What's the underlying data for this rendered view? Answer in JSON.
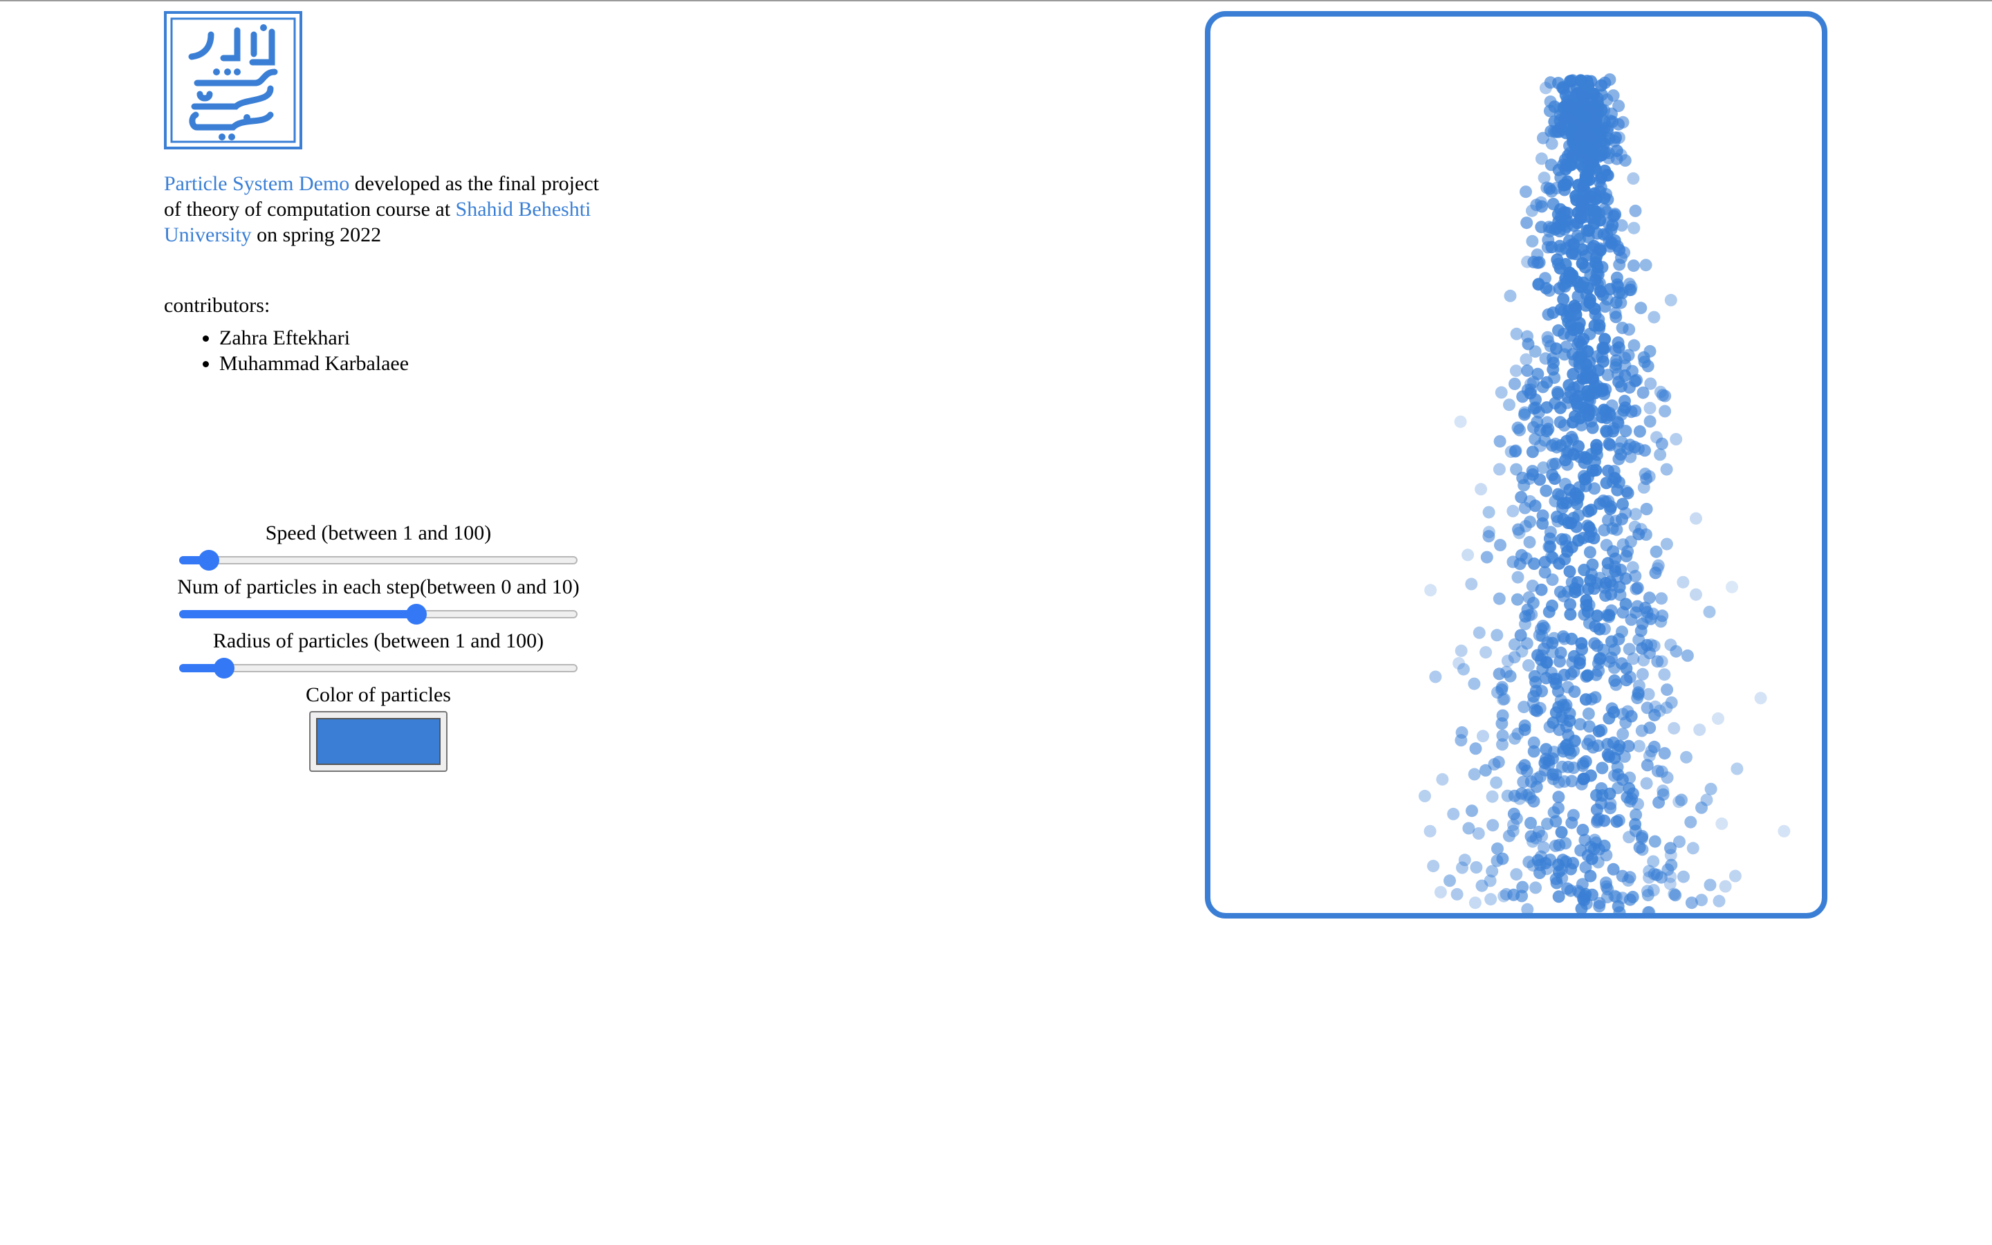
{
  "logo": {
    "icon": "shahid-beheshti-university-logo",
    "text": "دانشگاه شهید بهشتی"
  },
  "intro": {
    "project_link": "Particle System Demo",
    "text_1": " developed as the final project of theory of computation course at ",
    "university_link": "Shahid Beheshti University",
    "text_2": " on spring 2022"
  },
  "contributors": {
    "title": "contributors:",
    "items": [
      "Zahra Eftekhari",
      "Muhammad Karbalaee"
    ]
  },
  "controls": {
    "speed": {
      "label": "Speed (between 1 and 100)",
      "value": 6,
      "min": 1,
      "max": 100
    },
    "num": {
      "label": "Num of particles in each step(between 0 and 10)",
      "value": 6,
      "min": 0,
      "max": 10
    },
    "radius": {
      "label": "Radius of particles (between 1 and 100)",
      "value": 10,
      "min": 1,
      "max": 100
    },
    "color": {
      "label": "Color of particles",
      "value": "#3a7fd5"
    }
  },
  "colors": {
    "accent": "#3a7fd5",
    "slider": "#3478f6"
  }
}
